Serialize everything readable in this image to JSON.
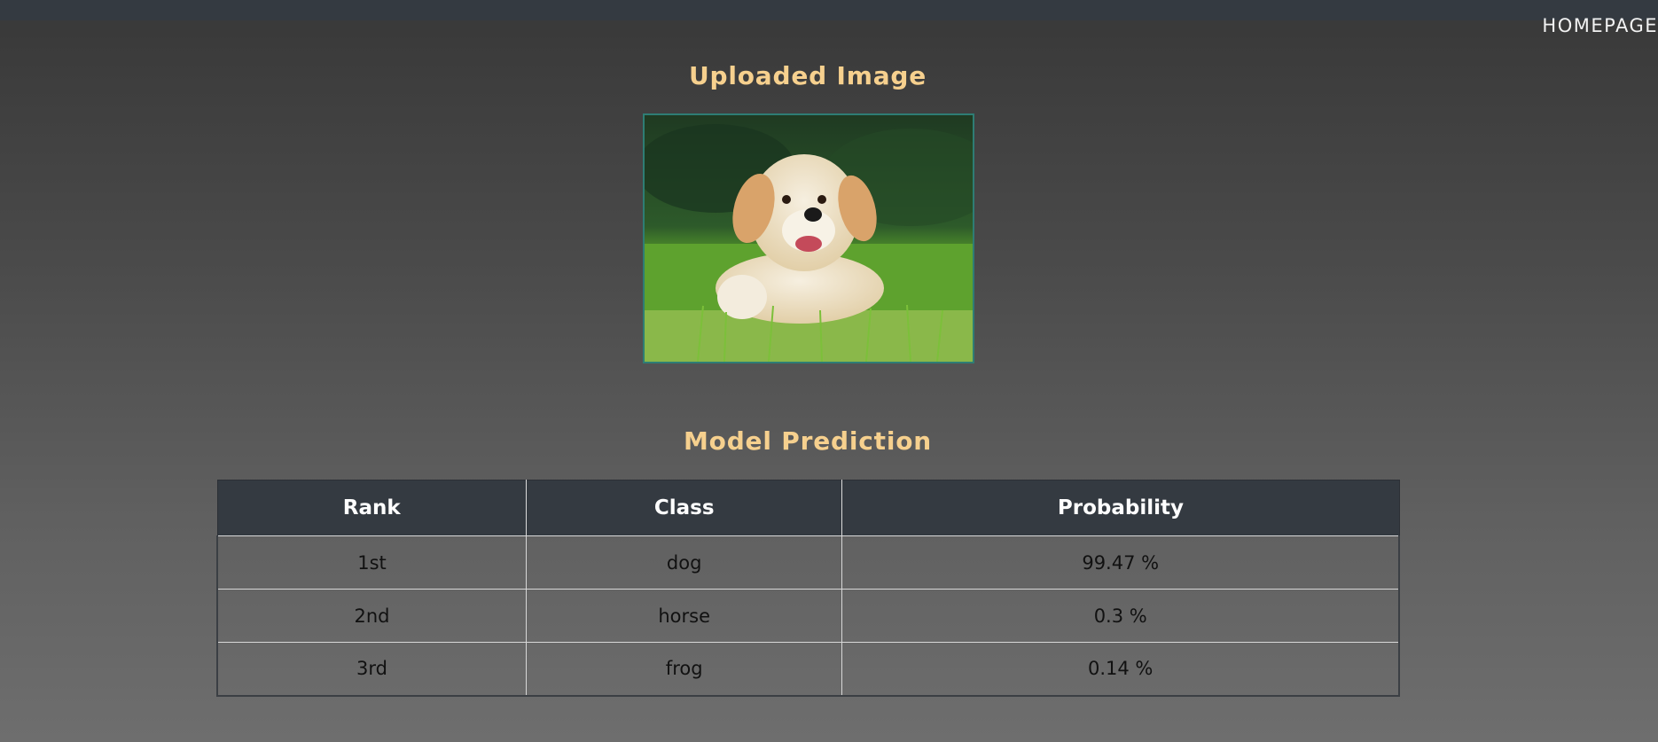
{
  "nav": {
    "home_label": "HOMEPAGE"
  },
  "uploaded": {
    "title": "Uploaded Image"
  },
  "prediction": {
    "title": "Model Prediction",
    "columns": [
      "Rank",
      "Class",
      "Probability"
    ],
    "rows": [
      {
        "rank": "1st",
        "class": "dog",
        "probability": "99.47 %"
      },
      {
        "rank": "2nd",
        "class": "horse",
        "probability": "0.3 %"
      },
      {
        "rank": "3rd",
        "class": "frog",
        "probability": "0.14 %"
      }
    ]
  },
  "colors": {
    "topbar": "#343a41",
    "title_accent": "#f6d08e",
    "image_border": "#2e7d74",
    "table_header_bg": "#343a41"
  }
}
